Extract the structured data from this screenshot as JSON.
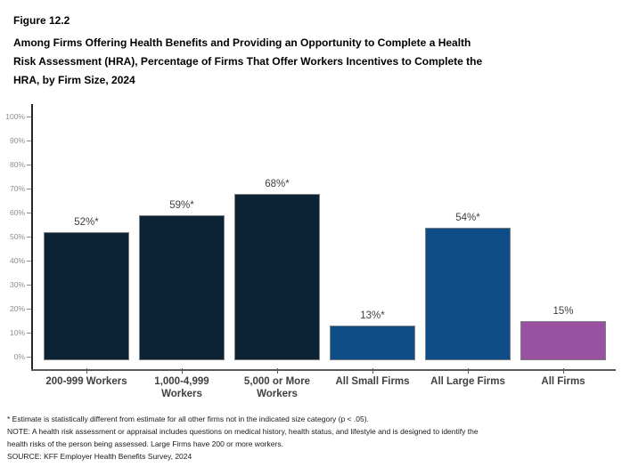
{
  "header": {
    "figure_label": "Figure 12.2",
    "title": "Among Firms Offering Health Benefits and Providing an Opportunity to Complete a Health\nRisk Assessment (HRA), Percentage of Firms That Offer Workers Incentives to Complete the\nHRA, by Firm Size, 2024"
  },
  "chart_data": {
    "type": "bar",
    "title": "Percentage of Firms That Offer Workers Incentives to Complete the HRA, by Firm Size, 2024",
    "categories": [
      "200-999 Workers",
      "1,000-4,999\nWorkers",
      "5,000 or More\nWorkers",
      "All Small Firms",
      "All Large Firms",
      "All Firms"
    ],
    "values": [
      52,
      59,
      68,
      13,
      54,
      15
    ],
    "bar_labels": [
      "52%*",
      "59%*",
      "68%*",
      "13%*",
      "54%*",
      "15%"
    ],
    "bar_colors": [
      "#0c2235",
      "#0c2235",
      "#0c2235",
      "#0e4d87",
      "#0e4d87",
      "#9852a1"
    ],
    "bar_border_color": "#808080",
    "xlabel": "",
    "ylabel": "",
    "ylim": [
      0,
      100
    ],
    "ytick_step": 10,
    "ytick_suffix": "%",
    "grid": false,
    "legend": "none",
    "axis_color": "#262626",
    "x_axis_color": "#595959",
    "tick_label_color": "#8c8c8c",
    "value_label_color": "#404040"
  },
  "footnotes": {
    "estimate": "* Estimate is statistically different from estimate for all other firms not in the indicated size category (p < .05).",
    "note": "NOTE: A health risk assessment or appraisal includes questions on medical history, health status, and lifestyle and is designed to identify the\nhealth risks of the person being assessed. Large Firms have 200 or more workers.",
    "source": "SOURCE: KFF Employer Health Benefits Survey, 2024"
  }
}
